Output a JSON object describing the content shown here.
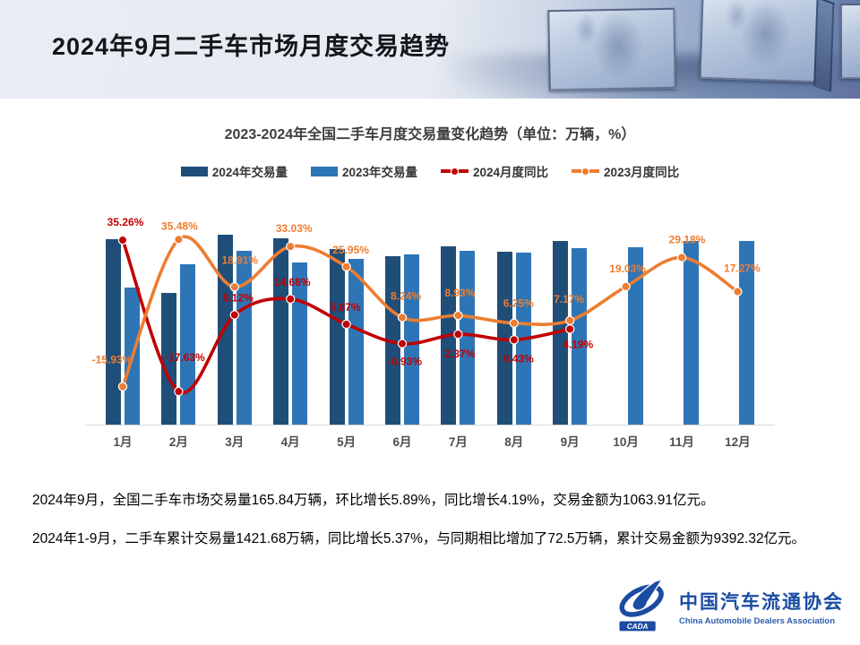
{
  "header": {
    "title": "2024年9月二手车市场月度交易趋势"
  },
  "chart": {
    "title": "2023-2024年全国二手车月度交易量变化趋势（单位：万辆，%）",
    "legend": [
      {
        "label": "2024年交易量",
        "type": "bar",
        "color": "#1f4e79"
      },
      {
        "label": "2023年交易量",
        "type": "bar",
        "color": "#2e75b6"
      },
      {
        "label": "2024月度同比",
        "type": "line",
        "color": "#c00000"
      },
      {
        "label": "2023月度同比",
        "type": "line",
        "color": "#ed7d31"
      }
    ]
  },
  "chart_data": {
    "type": "bar",
    "subtype": "combo-bar-line",
    "title": "2023-2024年全国二手车月度交易量变化趋势（单位：万辆，%）",
    "xlabel": "",
    "ylabel": "",
    "categories": [
      "1月",
      "2月",
      "3月",
      "4月",
      "5月",
      "6月",
      "7月",
      "8月",
      "9月",
      "10月",
      "11月",
      "12月"
    ],
    "series": [
      {
        "name": "2024年交易量",
        "kind": "bar",
        "unit": "万辆",
        "color": "#1f4e79",
        "values": [
          167.6,
          119.3,
          171.3,
          167.9,
          158.5,
          152.3,
          160.7,
          156.0,
          165.84,
          null,
          null,
          null
        ],
        "note": "bars are unlabeled; values estimated from bar heights, Sep-2024 = 165.84 known from caption"
      },
      {
        "name": "2023年交易量",
        "kind": "bar",
        "unit": "万辆",
        "color": "#2e75b6",
        "values": [
          124.0,
          144.8,
          157.0,
          146.4,
          149.7,
          153.7,
          157.0,
          155.3,
          159.2,
          160.2,
          165.9,
          165.9
        ],
        "note": "estimated from bar heights"
      },
      {
        "name": "2024月度同比",
        "kind": "line",
        "unit": "%",
        "color": "#c00000",
        "values": [
          35.26,
          -17.63,
          9.12,
          14.68,
          5.87,
          -0.93,
          2.37,
          0.43,
          4.19,
          null,
          null,
          null
        ]
      },
      {
        "name": "2023月度同比",
        "kind": "line",
        "unit": "%",
        "color": "#ed7d31",
        "values": [
          -15.93,
          35.48,
          18.91,
          33.03,
          25.95,
          8.24,
          8.93,
          6.25,
          7.17,
          19.03,
          29.18,
          17.27
        ]
      }
    ],
    "bar_axis_range_estimate": [
      0,
      200
    ],
    "grid": false,
    "axes_visible": false,
    "legend_position": "top",
    "data_labels": "line series only, formatted as 0.00%"
  },
  "notes": [
    "2024年9月，全国二手车市场交易量165.84万辆，环比增长5.89%，同比增长4.19%，交易金额为1063.91亿元。",
    "2024年1-9月，二手车累计交易量1421.68万辆，同比增长5.37%，与同期相比增加了72.5万辆，累计交易金额为9392.32亿元。"
  ],
  "logo": {
    "acronym": "CADA",
    "name_cn": "中国汽车流通协会",
    "name_en": "China Automobile Dealers Association",
    "color": "#1b4ca3"
  }
}
